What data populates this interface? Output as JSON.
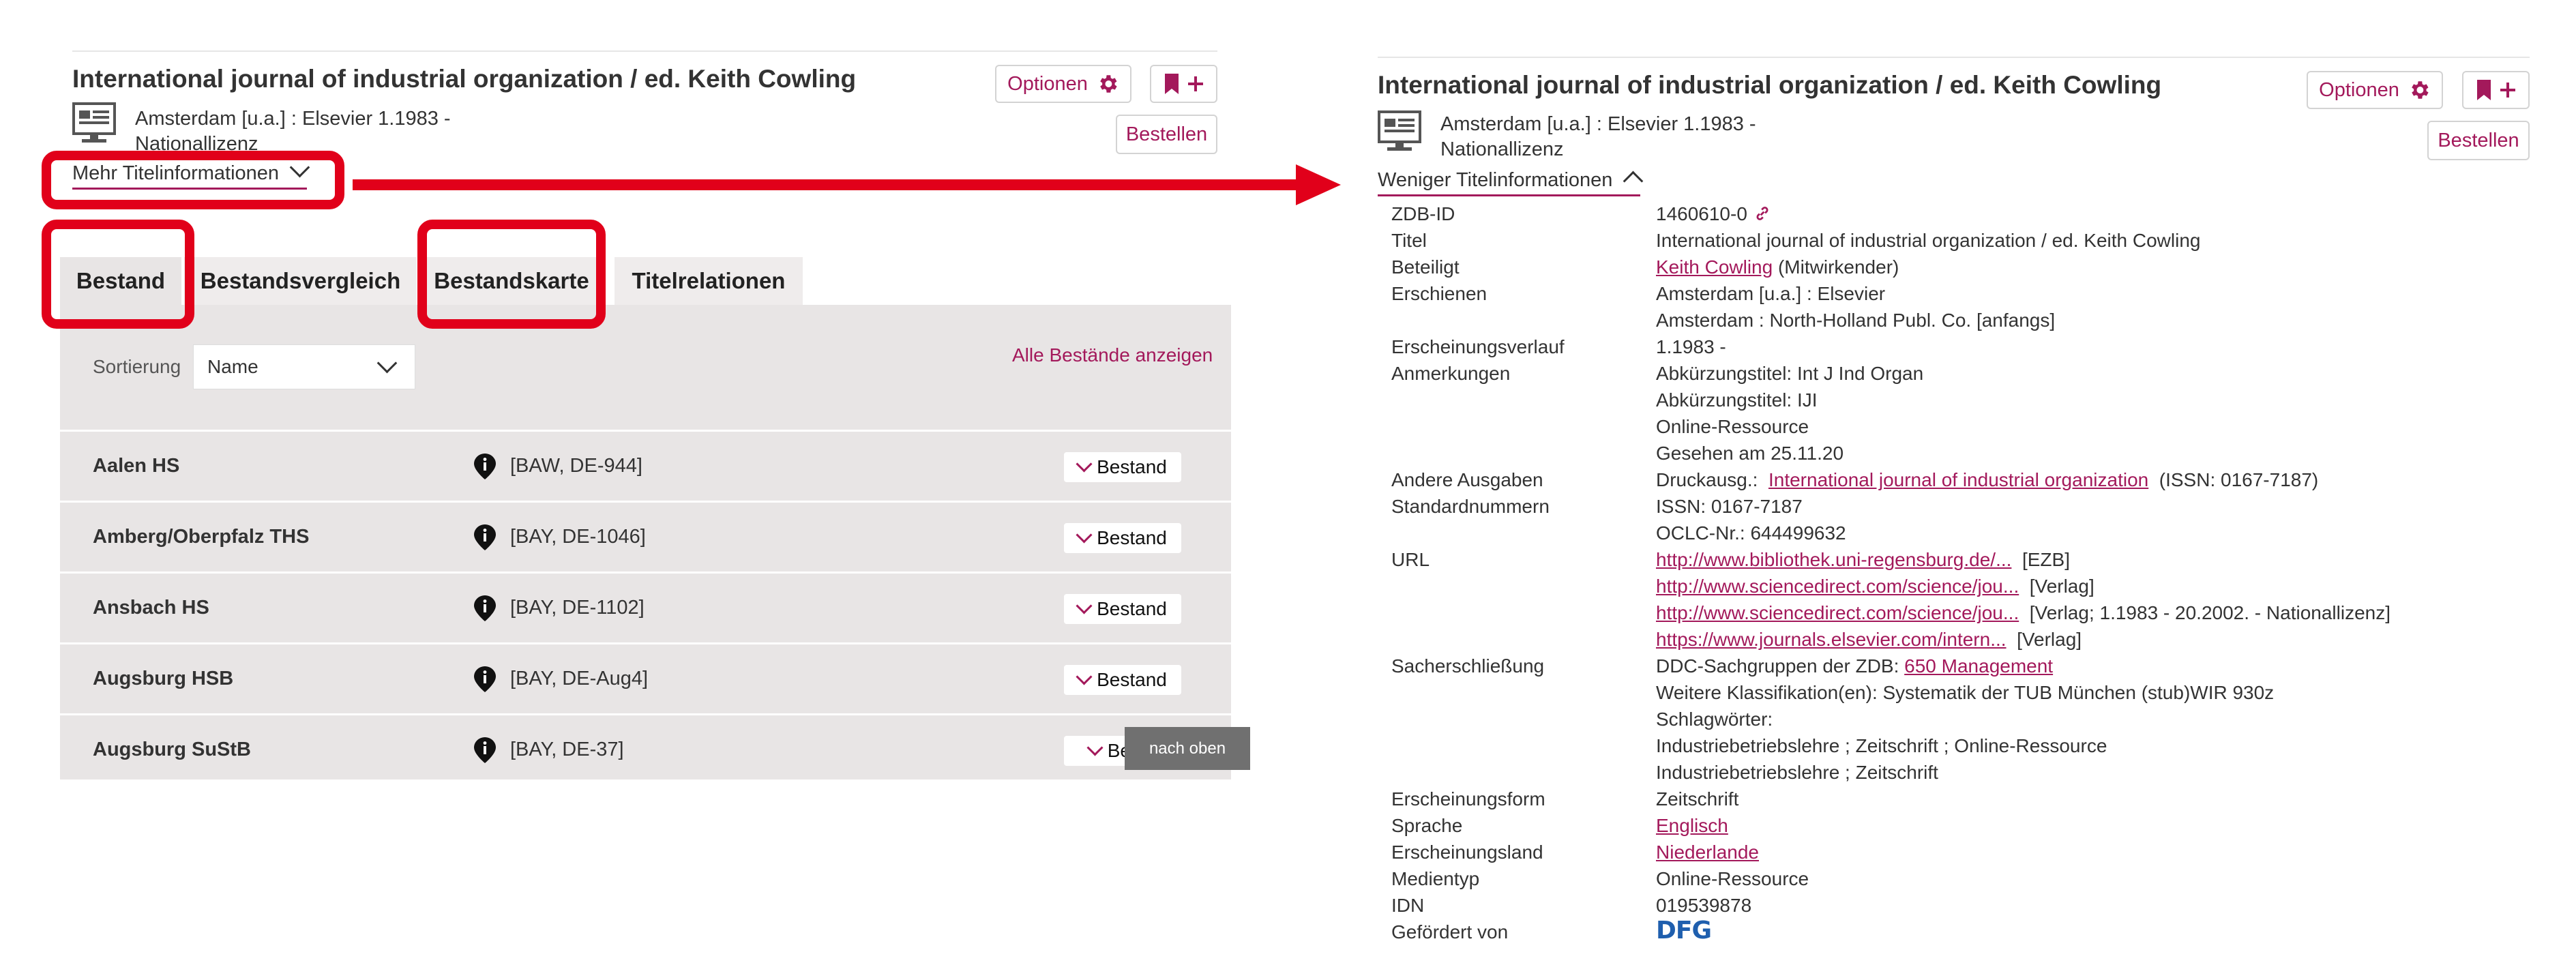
{
  "colors": {
    "accent": "#a3195b",
    "highlight": "#e1001a",
    "panel": "#e8e5e5",
    "dfg": "#1f5fae"
  },
  "left": {
    "title": "International journal of industrial organization / ed. Keith Cowling",
    "pub_line1": "Amsterdam [u.a.] : Elsevier 1.1983 -",
    "pub_line2": "Nationallizenz",
    "optionen_label": "Optionen",
    "bestellen_label": "Bestellen",
    "mehr_label": "Mehr Titelinformationen",
    "tabs": [
      "Bestand",
      "Bestandsvergleich",
      "Bestandskarte",
      "Titelrelationen"
    ],
    "sort_label": "Sortierung",
    "sort_value": "Name",
    "alle_label": "Alle Bestände anzeigen",
    "rows": [
      {
        "name": "Aalen HS",
        "code": "[BAW, DE-944]",
        "button": "Bestand"
      },
      {
        "name": "Amberg/Oberpfalz THS",
        "code": "[BAY, DE-1046]",
        "button": "Bestand"
      },
      {
        "name": "Ansbach HS",
        "code": "[BAY, DE-1102]",
        "button": "Bestand"
      },
      {
        "name": "Augsburg HSB",
        "code": "[BAY, DE-Aug4]",
        "button": "Bestand"
      },
      {
        "name": "Augsburg SuStB",
        "code": "[BAY, DE-37]",
        "button": "Besta"
      }
    ],
    "nach_oben": "nach oben"
  },
  "right": {
    "title": "International journal of industrial organization / ed. Keith Cowling",
    "pub_line1": "Amsterdam [u.a.] : Elsevier 1.1983 -",
    "pub_line2": "Nationallizenz",
    "optionen_label": "Optionen",
    "bestellen_label": "Bestellen",
    "weniger_label": "Weniger Titelinformationen",
    "details": {
      "zdb_label": "ZDB-ID",
      "zdb_value": "1460610-0",
      "titel_label": "Titel",
      "titel_value": "International journal of industrial organization / ed. Keith Cowling",
      "beteiligt_label": "Beteiligt",
      "beteiligt_link": "Keith Cowling",
      "beteiligt_rest": "(Mitwirkender)",
      "erschienen_label": "Erschienen",
      "erschienen_1": "Amsterdam [u.a.] : Elsevier",
      "erschienen_2": "Amsterdam : North-Holland Publ. Co. [anfangs]",
      "verlauf_label": "Erscheinungsverlauf",
      "verlauf_value": "1.1983 -",
      "anm_label": "Anmerkungen",
      "anm_1": "Abkürzungstitel: Int J Ind Organ",
      "anm_2": "Abkürzungstitel: IJI",
      "anm_3": "Online-Ressource",
      "anm_4": "Gesehen am 25.11.20",
      "andere_label": "Andere Ausgaben",
      "andere_prefix": "Druckausg.:",
      "andere_link": "International journal of industrial organization",
      "andere_suffix": "(ISSN: 0167-7187)",
      "std_label": "Standardnummern",
      "std_1": "ISSN: 0167-7187",
      "std_2": "OCLC-Nr.: 644499632",
      "url_label": "URL",
      "url_1": "http://www.bibliothek.uni-regensburg.de/...",
      "url_1_note": "[EZB]",
      "url_2": "http://www.sciencedirect.com/science/jou...",
      "url_2_note": "[Verlag]",
      "url_3": "http://www.sciencedirect.com/science/jou...",
      "url_3_note": "[Verlag; 1.1983 - 20.2002. - Nationallizenz]",
      "url_4": "https://www.journals.elsevier.com/intern...",
      "url_4_note": "[Verlag]",
      "sach_label": "Sacherschließung",
      "sach_1_prefix": "DDC-Sachgruppen der ZDB:",
      "sach_1_link": "650 Management",
      "sach_2": "Weitere Klassifikation(en): Systematik der TUB München (stub)WIR 930z",
      "sach_3": "Schlagwörter:",
      "sach_4": "Industriebetriebslehre ; Zeitschrift ; Online-Ressource",
      "sach_5": "Industriebetriebslehre ; Zeitschrift",
      "form_label": "Erscheinungsform",
      "form_value": "Zeitschrift",
      "sprache_label": "Sprache",
      "sprache_value": "Englisch",
      "land_label": "Erscheinungsland",
      "land_value": "Niederlande",
      "medien_label": "Medientyp",
      "medien_value": "Online-Ressource",
      "idn_label": "IDN",
      "idn_value": "019539878",
      "foerder_label": "Gefördert von",
      "foerder_value": "DFG"
    }
  }
}
